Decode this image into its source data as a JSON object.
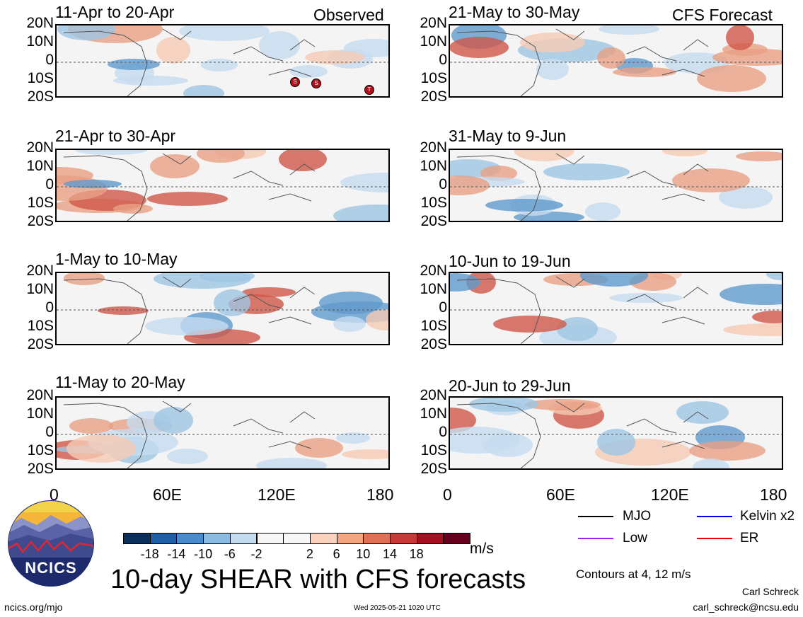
{
  "left_column": {
    "tag": "Observed",
    "panels": [
      {
        "title": "11-Apr to 20-Apr"
      },
      {
        "title": "21-Apr to 30-Apr"
      },
      {
        "title": "1-May to 10-May"
      },
      {
        "title": "11-May to 20-May"
      }
    ]
  },
  "right_column": {
    "tag": "CFS Forecast",
    "panels": [
      {
        "title": "21-May to 30-May"
      },
      {
        "title": "31-May to 9-Jun"
      },
      {
        "title": "10-Jun to 19-Jun"
      },
      {
        "title": "20-Jun to 29-Jun"
      }
    ]
  },
  "lat_labels": [
    "20N",
    "10N",
    "0",
    "10S",
    "20S"
  ],
  "lon_labels": [
    "0",
    "60E",
    "120E",
    "180"
  ],
  "storm_markers": [
    "S",
    "S",
    "T"
  ],
  "colorbar": {
    "colors": [
      "#0b2e5b",
      "#1f5fa6",
      "#4a8ccb",
      "#8bbbe0",
      "#c4dcef",
      "#f7f7f7",
      "#f7f7f7",
      "#fbd2bd",
      "#f4a582",
      "#e07058",
      "#c83a3a",
      "#a51122",
      "#67001f"
    ],
    "labels": [
      "-18",
      "-14",
      "-10",
      "-6",
      "-2",
      "2",
      "6",
      "10",
      "14",
      "18"
    ],
    "units": "m/s"
  },
  "legend": {
    "items": [
      {
        "name": "MJO",
        "color": "#000000"
      },
      {
        "name": "Kelvin x2",
        "color": "#0000ee"
      },
      {
        "name": "Low",
        "color": "#a020f0"
      },
      {
        "name": "ER",
        "color": "#ee0000"
      }
    ],
    "contour_note": "Contours at 4, 12 m/s"
  },
  "main_title": "10-day SHEAR with CFS forecasts",
  "logo_text": "NCICS",
  "footer": {
    "url": "ncics.org/mjo",
    "timestamp": "Wed 2025-05-21 1020 UTC",
    "author": "Carl Schreck",
    "email": "carl_schreck@ncsu.edu"
  }
}
